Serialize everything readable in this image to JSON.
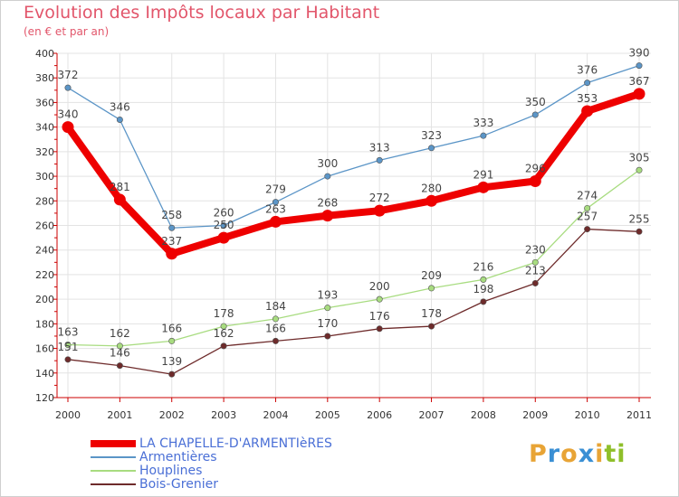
{
  "page": {
    "title": "Evolution des Impôts locaux par Habitant",
    "subtitle": "(en € et par an)",
    "brand": [
      "P",
      "r",
      "o",
      "x",
      "i",
      "t",
      "i"
    ],
    "brand_colors": [
      "#e8a436",
      "#3a8fd4",
      "#e8a436",
      "#3a8fd4",
      "#e8a436",
      "#8fbf2a",
      "#8fbf2a"
    ]
  },
  "chart_data": {
    "type": "line",
    "title": "Evolution des Impôts locaux par Habitant",
    "subtitle": "(en € et par an)",
    "xlabel": "",
    "ylabel": "",
    "x": [
      "2000",
      "2001",
      "2002",
      "2003",
      "2004",
      "2005",
      "2006",
      "2007",
      "2008",
      "2009",
      "2010",
      "2011"
    ],
    "ylim": [
      120,
      400
    ],
    "yticks": [
      120,
      140,
      160,
      180,
      200,
      220,
      240,
      260,
      280,
      300,
      320,
      340,
      360,
      380,
      400
    ],
    "grid": true,
    "legend": "bottom-left",
    "series": [
      {
        "name": "LA CHAPELLE-D'ARMENTIèRES",
        "values": [
          340,
          281,
          237,
          250,
          263,
          268,
          272,
          280,
          291,
          296,
          353,
          367
        ],
        "color": "#ee0000",
        "emphasis": true
      },
      {
        "name": "Armentières",
        "values": [
          372,
          346,
          258,
          260,
          279,
          300,
          313,
          323,
          333,
          350,
          376,
          390
        ],
        "color": "#5b95c7"
      },
      {
        "name": "Houplines",
        "values": [
          163,
          162,
          166,
          178,
          184,
          193,
          200,
          209,
          216,
          230,
          274,
          305
        ],
        "color": "#a8dc80"
      },
      {
        "name": "Bois-Grenier",
        "values": [
          151,
          146,
          139,
          162,
          166,
          170,
          176,
          178,
          198,
          213,
          257,
          255
        ],
        "color": "#6e2b2b"
      }
    ]
  }
}
